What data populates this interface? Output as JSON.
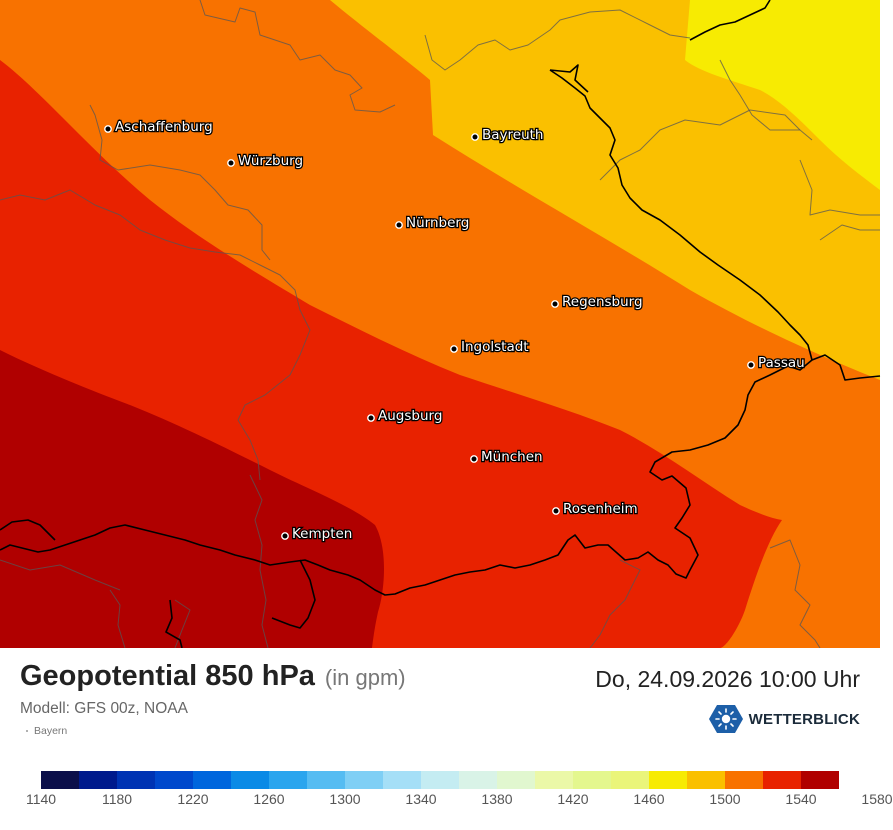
{
  "map": {
    "colors": {
      "c1500": "#f7eb02",
      "c1520": "#fac000",
      "c1540": "#f87200",
      "c1560": "#e82200",
      "c1580": "#b00000",
      "border": "#000000",
      "region_border": "#555555"
    },
    "cities": [
      {
        "name": "Aschaffenburg",
        "icon": "city-dot-icon"
      },
      {
        "name": "Würzburg",
        "icon": "city-dot-icon"
      },
      {
        "name": "Bayreuth",
        "icon": "city-dot-icon"
      },
      {
        "name": "Nürnberg",
        "icon": "city-dot-icon"
      },
      {
        "name": "Regensburg",
        "icon": "city-dot-icon"
      },
      {
        "name": "Ingolstadt",
        "icon": "city-dot-icon"
      },
      {
        "name": "Passau",
        "icon": "city-dot-icon"
      },
      {
        "name": "Augsburg",
        "icon": "city-dot-icon"
      },
      {
        "name": "München",
        "icon": "city-dot-icon"
      },
      {
        "name": "Rosenheim",
        "icon": "city-dot-icon"
      },
      {
        "name": "Kempten",
        "icon": "city-dot-icon"
      }
    ]
  },
  "footer": {
    "title": "Geopotential 850 hPa",
    "unit": "(in gpm)",
    "datetime": "Do, 24.09.2026 10:00 Uhr",
    "model": "Modell: GFS 00z, NOAA",
    "region": "Bayern",
    "brand": "WETTERBLICK",
    "brand_icon": "wetterblick-logo-icon"
  },
  "legend": {
    "colors": [
      "#0b0f4a",
      "#001a8c",
      "#0033b3",
      "#0048cc",
      "#0066dd",
      "#0a8ae6",
      "#2aa5ee",
      "#55bcf2",
      "#7fcff5",
      "#a5dff7",
      "#c4ecf2",
      "#d9f3e7",
      "#e1f7cf",
      "#ebf8a8",
      "#e4f78e",
      "#eaf57a",
      "#f7eb02",
      "#fac000",
      "#f87200",
      "#e82200",
      "#b00000"
    ],
    "ticks": [
      "1140",
      "1180",
      "1220",
      "1260",
      "1300",
      "1340",
      "1380",
      "1420",
      "1460",
      "1500",
      "1540",
      "1580"
    ]
  }
}
